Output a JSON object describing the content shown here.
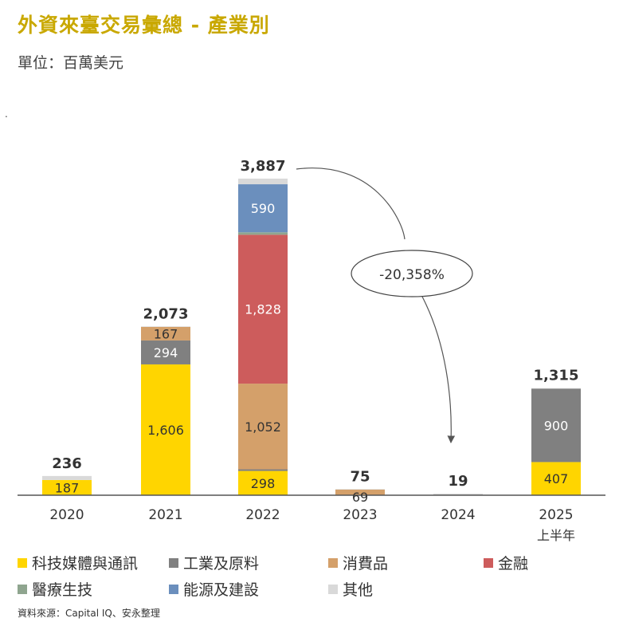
{
  "title": "外資來臺交易彙總 - 產業別",
  "subtitle": "單位：百萬美元",
  "source": "資料來源：Capital IQ、安永整理",
  "chart_data": {
    "type": "bar",
    "stacked": true,
    "categories": [
      "2020",
      "2021",
      "2022",
      "2023",
      "2024",
      "2025"
    ],
    "category_sublabels": [
      "",
      "",
      "",
      "",
      "",
      "上半年"
    ],
    "totals": [
      "236",
      "2,073",
      "3,887",
      "75",
      "19",
      "1,315"
    ],
    "total_values": [
      236,
      2073,
      3887,
      75,
      19,
      1315
    ],
    "series": [
      {
        "name": "科技媒體與通訊",
        "color": "#ffd500",
        "values": [
          187,
          1606,
          298,
          0,
          0,
          407
        ],
        "labels": [
          "187",
          "1,606",
          "298",
          "",
          "",
          "407"
        ]
      },
      {
        "name": "工業及原料",
        "color": "#808080",
        "values": [
          0,
          294,
          20,
          0,
          0,
          900
        ],
        "labels": [
          "",
          "294",
          "",
          "",
          "",
          "900"
        ]
      },
      {
        "name": "消費品",
        "color": "#d4a06a",
        "values": [
          0,
          167,
          1052,
          69,
          0,
          0
        ],
        "labels": [
          "",
          "167",
          "1,052",
          "69",
          "",
          ""
        ]
      },
      {
        "name": "金融",
        "color": "#cd5c5c",
        "values": [
          0,
          0,
          1828,
          0,
          0,
          0
        ],
        "labels": [
          "",
          "",
          "1,828",
          "",
          "",
          ""
        ]
      },
      {
        "name": "醫療生技",
        "color": "#8fa58f",
        "values": [
          0,
          0,
          30,
          0,
          0,
          0
        ],
        "labels": [
          "",
          "",
          "",
          "",
          "",
          ""
        ]
      },
      {
        "name": "能源及建設",
        "color": "#6b8fbd",
        "values": [
          0,
          0,
          590,
          0,
          0,
          0
        ],
        "labels": [
          "",
          "",
          "590",
          "",
          "",
          ""
        ]
      },
      {
        "name": "其他",
        "color": "#d9d9d9",
        "values": [
          49,
          6,
          69,
          6,
          19,
          8
        ],
        "labels": [
          "",
          "",
          "",
          "",
          "",
          ""
        ]
      }
    ],
    "annotation": "-20,358%",
    "ylim": [
      0,
      3887
    ],
    "grid": false,
    "legend_position": "bottom"
  }
}
